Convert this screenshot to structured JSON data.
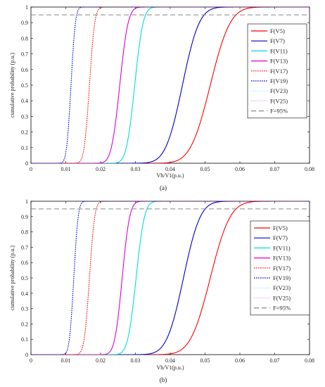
{
  "chart_data": [
    {
      "type": "line",
      "caption": "(a)",
      "xlabel": "Vh/V1(p.u.)",
      "ylabel": "cumulative probability (p.u.)",
      "xlim": [
        0,
        0.08
      ],
      "ylim": [
        0,
        1
      ],
      "xticks": [
        "0",
        "0.01",
        "0.02",
        "0.03",
        "0.04",
        "0.05",
        "0.06",
        "0.07",
        "0.08"
      ],
      "yticks": [
        "0",
        "0.1",
        "0.2",
        "0.3",
        "0.4",
        "0.5",
        "0.6",
        "0.7",
        "0.8",
        "0.9",
        "1"
      ],
      "legend_position": "right",
      "series": [
        {
          "name": "F(V5)",
          "color": "#ff0000",
          "dash": "solid",
          "mean": 0.0515,
          "sd": 0.0045
        },
        {
          "name": "F(V7)",
          "color": "#0000cc",
          "dash": "solid",
          "mean": 0.0435,
          "sd": 0.0038
        },
        {
          "name": "F(V11)",
          "color": "#00dddd",
          "dash": "solid",
          "mean": 0.0298,
          "sd": 0.0019
        },
        {
          "name": "F(V13)",
          "color": "#dd00dd",
          "dash": "solid",
          "mean": 0.0255,
          "sd": 0.0019
        },
        {
          "name": "F(V17)",
          "color": "#ff0000",
          "dash": "dotted",
          "mean": 0.0168,
          "sd": 0.0012
        },
        {
          "name": "F(V19)",
          "color": "#0000cc",
          "dash": "dotted",
          "mean": 0.0115,
          "sd": 0.001
        },
        {
          "name": "F(V23)",
          "color": "#aaeeee",
          "dash": "dotted",
          "mean": null,
          "sd": null
        },
        {
          "name": "F(V25)",
          "color": "#f0b0f0",
          "dash": "dotted",
          "mean": null,
          "sd": null
        },
        {
          "name": "F=95%",
          "color": "#888888",
          "dash": "dashed",
          "level": 0.95
        }
      ]
    },
    {
      "type": "line",
      "caption": "(b)",
      "xlabel": "Vh/V1(p.u.)",
      "ylabel": "cumulative probability (p.u.)",
      "xlim": [
        0,
        0.08
      ],
      "ylim": [
        0,
        1
      ],
      "xticks": [
        "0",
        "0.01",
        "0.02",
        "0.03",
        "0.04",
        "0.05",
        "0.06",
        "0.07",
        "0.08"
      ],
      "yticks": [
        "0",
        "0.1",
        "0.2",
        "0.3",
        "0.4",
        "0.5",
        "0.6",
        "0.7",
        "0.8",
        "0.9",
        "1"
      ],
      "legend_position": "right",
      "series": [
        {
          "name": "F(V5)",
          "color": "#ff0000",
          "dash": "solid",
          "mean": 0.0515,
          "sd": 0.0045
        },
        {
          "name": "F(V7)",
          "color": "#0000cc",
          "dash": "solid",
          "mean": 0.0438,
          "sd": 0.0038
        },
        {
          "name": "F(V11)",
          "color": "#00dddd",
          "dash": "solid",
          "mean": 0.0302,
          "sd": 0.0019
        },
        {
          "name": "F(V13)",
          "color": "#dd00dd",
          "dash": "solid",
          "mean": 0.0262,
          "sd": 0.0017
        },
        {
          "name": "F(V17)",
          "color": "#ff0000",
          "dash": "dotted",
          "mean": 0.0168,
          "sd": 0.0012
        },
        {
          "name": "F(V19)",
          "color": "#0000cc",
          "dash": "dotted",
          "mean": 0.0123,
          "sd": 0.001
        },
        {
          "name": "F(V23)",
          "color": "#aaeeee",
          "dash": "dotted",
          "mean": null,
          "sd": null
        },
        {
          "name": "F(V25)",
          "color": "#f0b0f0",
          "dash": "dotted",
          "mean": null,
          "sd": null
        },
        {
          "name": "F=95%",
          "color": "#888888",
          "dash": "dashed",
          "level": 0.95
        }
      ]
    }
  ]
}
